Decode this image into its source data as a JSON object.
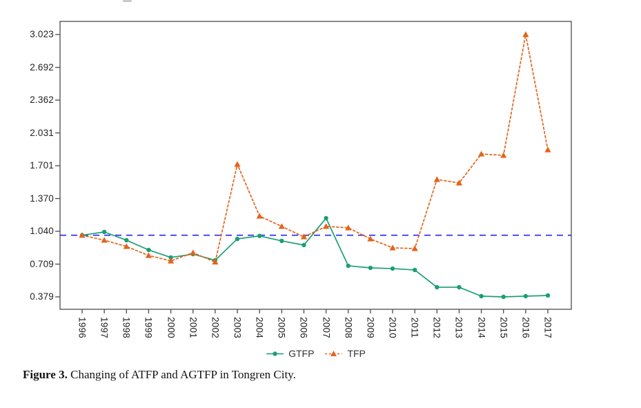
{
  "page": {
    "background": "#ffffff"
  },
  "caption": {
    "label": "Figure 3.",
    "text": "Changing of ATFP and AGTFP in Tongren City."
  },
  "colors": {
    "axis": "#4a4a4a",
    "tick_text": "#222222",
    "legend_text": "#333333",
    "gtfp_green": "#1b9e77",
    "tfp_orange": "#e3631a",
    "reference_blue": "#3333f0"
  },
  "chart_data": {
    "type": "line",
    "title": "",
    "xlabel": "",
    "ylabel": "",
    "grid": false,
    "legend_position": "bottom-center",
    "x": [
      "1996",
      "1997",
      "1998",
      "1999",
      "2000",
      "2001",
      "2002",
      "2003",
      "2004",
      "2005",
      "2006",
      "2007",
      "2008",
      "2009",
      "2010",
      "2011",
      "2012",
      "2013",
      "2014",
      "2015",
      "2016",
      "2017"
    ],
    "y_ticks": [
      0.379,
      0.709,
      1.04,
      1.37,
      1.701,
      2.031,
      2.362,
      2.692,
      3.023
    ],
    "ylim": [
      0.25,
      3.16
    ],
    "reference_line": {
      "value": 1.0,
      "color": "#3333f0",
      "style": "dashed"
    },
    "series": [
      {
        "name": "GTFP",
        "color": "#1b9e77",
        "marker": "circle",
        "line": "solid",
        "values": [
          1.0,
          1.033,
          0.95,
          0.852,
          0.776,
          0.81,
          0.748,
          0.963,
          0.993,
          0.943,
          0.901,
          1.172,
          0.692,
          0.671,
          0.664,
          0.65,
          0.476,
          0.476,
          0.386,
          0.379,
          0.386,
          0.393
        ]
      },
      {
        "name": "TFP",
        "color": "#e3631a",
        "marker": "triangle",
        "line": "dashed",
        "values": [
          1.0,
          0.95,
          0.887,
          0.796,
          0.741,
          0.824,
          0.73,
          1.715,
          1.193,
          1.089,
          0.984,
          1.089,
          1.075,
          0.963,
          0.873,
          0.866,
          1.562,
          1.527,
          1.819,
          1.805,
          3.023,
          1.861
        ]
      }
    ]
  }
}
